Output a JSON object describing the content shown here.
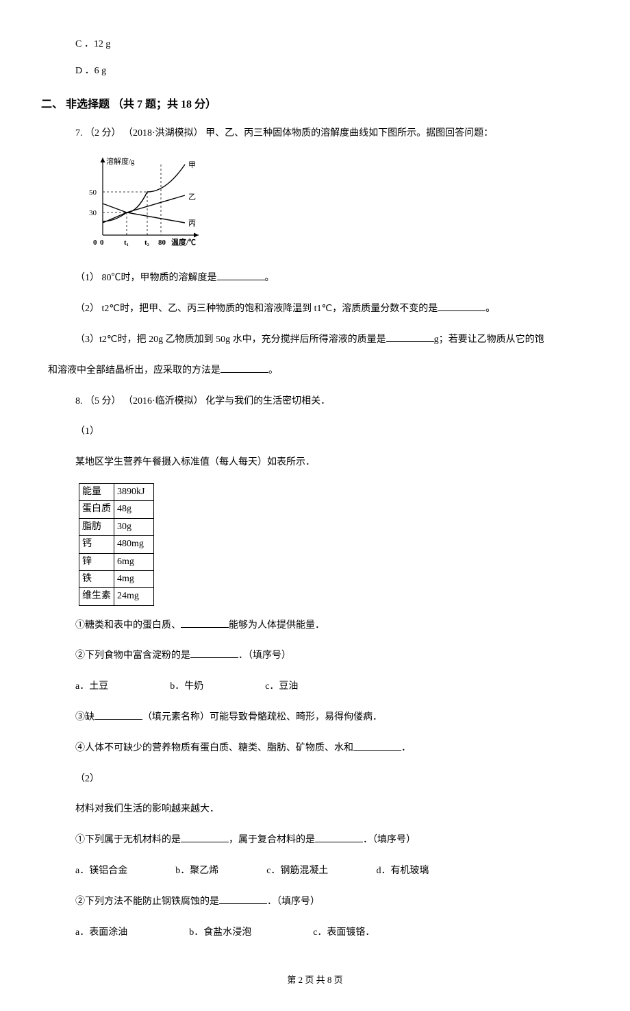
{
  "topOptions": {
    "c": "C ．12 g",
    "d": "D ．6 g"
  },
  "sectionTitle": "二、 非选择题 （共 7 题；共 18 分）",
  "q7": {
    "stem": "7.  （2 分） （2018·洪湖模拟） 甲、乙、丙三种固体物质的溶解度曲线如下图所示。据图回答问题：",
    "chart": {
      "type": "line",
      "width": 190,
      "height": 140,
      "background_color": "#ffffff",
      "axis_color": "#000000",
      "axis_width": 1.2,
      "grid_dash": "3 3",
      "x_label": "温度/℃",
      "y_label": "溶解度/g",
      "label_fontsize": 11,
      "x_ticks": [
        {
          "label": "0",
          "x": 35
        },
        {
          "label": "t₁",
          "x": 70
        },
        {
          "label": "t₂",
          "x": 100
        },
        {
          "label": "80",
          "x": 120
        }
      ],
      "y_ticks": [
        {
          "label": "30",
          "y": 85
        },
        {
          "label": "50",
          "y": 55
        }
      ],
      "series": [
        {
          "name": "甲",
          "color": "#000000",
          "width": 1.4,
          "points": [
            [
              35,
              98
            ],
            [
              70,
              85
            ],
            [
              100,
              55
            ],
            [
              155,
              15
            ]
          ],
          "curve": true,
          "label_pos": [
            160,
            15
          ]
        },
        {
          "name": "乙",
          "color": "#000000",
          "width": 1.4,
          "points": [
            [
              35,
              100
            ],
            [
              70,
              85
            ],
            [
              155,
              60
            ]
          ],
          "curve": false,
          "label_pos": [
            160,
            62
          ]
        },
        {
          "name": "丙",
          "color": "#000000",
          "width": 1.4,
          "points": [
            [
              35,
              72
            ],
            [
              70,
              85
            ],
            [
              155,
              100
            ]
          ],
          "curve": false,
          "label_pos": [
            160,
            100
          ]
        }
      ],
      "dashed_guides": [
        {
          "from": [
            70,
            85
          ],
          "to": [
            70,
            118
          ]
        },
        {
          "from": [
            100,
            55
          ],
          "to": [
            100,
            118
          ]
        },
        {
          "from": [
            35,
            85
          ],
          "to": [
            70,
            85
          ]
        },
        {
          "from": [
            35,
            55
          ],
          "to": [
            100,
            55
          ]
        },
        {
          "from": [
            120,
            15
          ],
          "to": [
            120,
            118
          ]
        }
      ]
    },
    "p1_before": "（1） 80℃时，甲物质的溶解度是",
    "p1_after": "。",
    "p2_before": "（2） t2℃时，把甲、乙、丙三种物质的饱和溶液降温到 t1℃，溶质质量分数不变的是",
    "p2_after": "。",
    "p3_before": "（3）t2℃时，把 20g 乙物质加到 50g 水中，充分搅拌后所得溶液的质量是",
    "p3_mid": "g；若要让乙物质从它的饱",
    "p3_line2_before": "和溶液中全部结晶析出，应采取的方法是",
    "p3_line2_after": "。"
  },
  "q8": {
    "stem": "8.  （5 分） （2016·临沂模拟） 化学与我们的生活密切相关．",
    "part1_label": "（1）",
    "part1_intro": "某地区学生营养午餐摄入标准值（每人每天）如表所示．",
    "table": {
      "columns_width": [
        48,
        58
      ],
      "rows": [
        [
          "能量",
          "3890kJ"
        ],
        [
          "蛋白质",
          "48g"
        ],
        [
          "脂肪",
          "30g"
        ],
        [
          "钙",
          "480mg"
        ],
        [
          "锌",
          "6mg"
        ],
        [
          "铁",
          "4mg"
        ],
        [
          "维生素",
          "24mg"
        ]
      ]
    },
    "q1_1_before": "①糖类和表中的蛋白质、",
    "q1_1_after": "能够为人体提供能量．",
    "q1_2_before": "②下列食物中富含淀粉的是",
    "q1_2_after": "．（填序号）",
    "q1_2_choices": {
      "a": "a．土豆",
      "b": "b．牛奶",
      "c": "c．豆油"
    },
    "q1_3_before": "③缺",
    "q1_3_after": "（填元素名称）可能导致骨骼疏松、畸形，易得佝偻病．",
    "q1_4_before": "④人体不可缺少的营养物质有蛋白质、糖类、脂肪、矿物质、水和",
    "q1_4_after": "．",
    "part2_label": "（2）",
    "part2_intro": "材料对我们生活的影响越来越大．",
    "q2_1_before": "①下列属于无机材料的是",
    "q2_1_mid": "，属于复合材料的是",
    "q2_1_after": "．（填序号）",
    "q2_1_choices": {
      "a": "a．镁铝合金",
      "b": "b．聚乙烯",
      "c": "c．钢筋混凝土",
      "d": "d．有机玻璃"
    },
    "q2_2_before": "②下列方法不能防止钢铁腐蚀的是",
    "q2_2_after": "．（填序号）",
    "q2_2_choices": {
      "a": "a．表面涂油",
      "b": "b．食盐水浸泡",
      "c": "c．表面镀铬．"
    }
  },
  "footer": "第 2 页 共 8 页"
}
